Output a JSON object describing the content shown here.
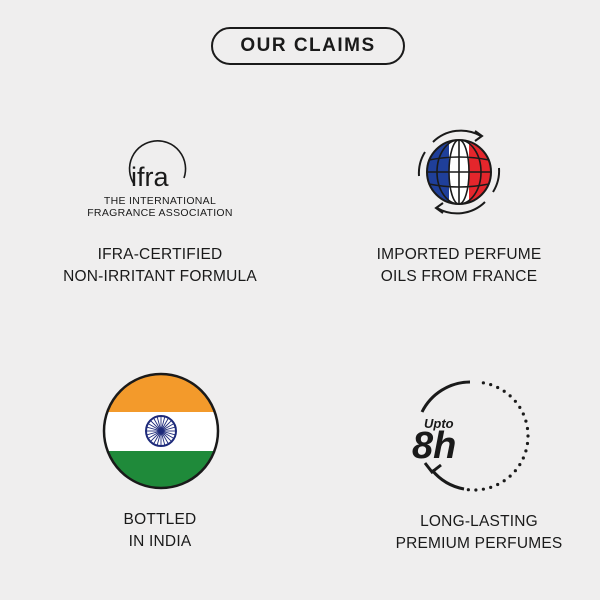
{
  "header": {
    "title": "OUR CLAIMS"
  },
  "claims": [
    {
      "logo": {
        "wordmark": "ifra",
        "line1": "THE INTERNATIONAL",
        "line2": "FRAGRANCE ASSOCIATION"
      },
      "line1": "IFRA-CERTIFIED",
      "line2": "NON-IRRITANT FORMULA",
      "icon": "ifra-logo-icon"
    },
    {
      "line1": "IMPORTED PERFUME",
      "line2": "OILS FROM FRANCE",
      "icon": "france-globe-icon"
    },
    {
      "line1": "BOTTLED",
      "line2": "IN INDIA",
      "icon": "india-flag-icon"
    },
    {
      "badge": {
        "small": "Upto",
        "big": "8h"
      },
      "line1": "LONG-LASTING",
      "line2": "PREMIUM PERFUMES",
      "icon": "clock-8h-icon"
    }
  ],
  "colors": {
    "background": "#efeeee",
    "ink": "#1a1a1a",
    "france_blue": "#1f3f9a",
    "france_red": "#e4262c",
    "india_saffron": "#f39a2b",
    "india_green": "#1f8a3a",
    "chakra_navy": "#1d2a7a"
  }
}
